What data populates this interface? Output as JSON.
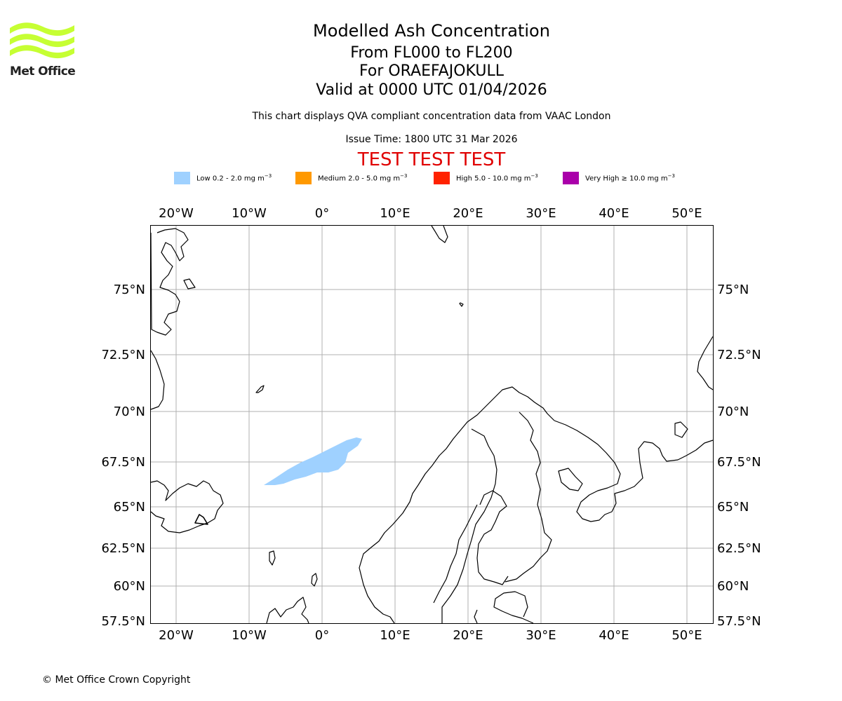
{
  "logo": {
    "text": "Met Office"
  },
  "title": {
    "line1": "Modelled Ash Concentration",
    "line2": "From FL000 to FL200",
    "line3": "For ORAEFAJOKULL",
    "line4": "Valid at 0000 UTC 01/04/2026"
  },
  "subtitle": "This chart displays QVA compliant concentration data from VAAC London",
  "issue_time": "Issue Time: 1800 UTC 31 Mar 2026",
  "test_banner": "TEST TEST TEST",
  "legend": [
    {
      "label": "Low 0.2 - 2.0 mg m",
      "color": "#9fd1ff"
    },
    {
      "label": "Medium 2.0 - 5.0 mg m",
      "color": "#ff9900"
    },
    {
      "label": "High 5.0 - 10.0 mg m",
      "color": "#ff2200"
    },
    {
      "label": "Very High ≥ 10.0 mg m",
      "color": "#aa00aa"
    }
  ],
  "legend_unit_exponent": "−3",
  "map": {
    "lon_labels": [
      "20°W",
      "10°W",
      "0°",
      "10°E",
      "20°E",
      "30°E",
      "40°E",
      "50°E"
    ],
    "lat_labels": [
      "75°N",
      "72.5°N",
      "70°N",
      "67.5°N",
      "65°N",
      "62.5°N",
      "60°N",
      "57.5°N"
    ],
    "ash_level": "Low",
    "volcano": "ORAEFAJOKULL"
  },
  "copyright": "© Met Office Crown Copyright"
}
